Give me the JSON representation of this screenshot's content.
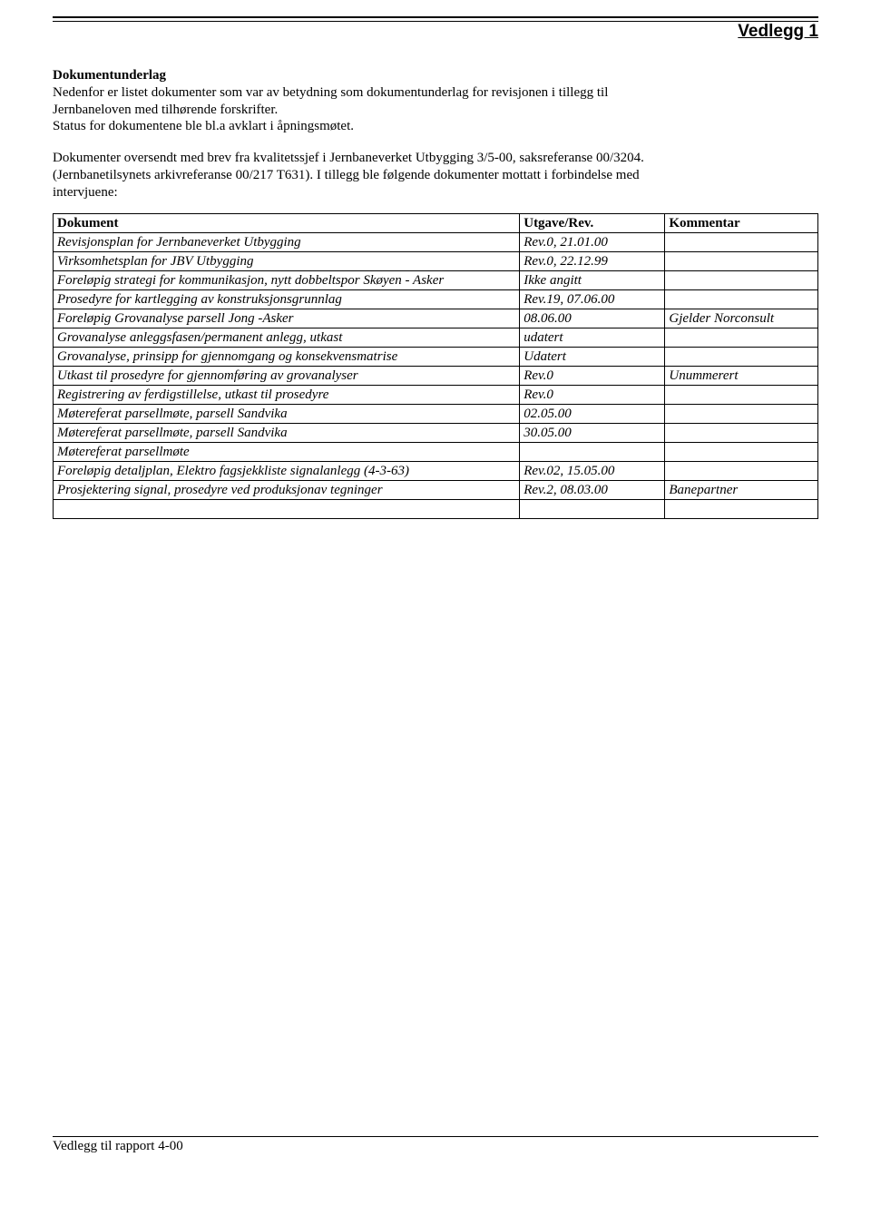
{
  "header": {
    "title": "Vedlegg 1"
  },
  "intro": {
    "heading": "Dokumentunderlag",
    "para1_line1": "Nedenfor er listet dokumenter som var av betydning som dokumentunderlag for revisjonen i tillegg til",
    "para1_line2": "Jernbaneloven med tilhørende forskrifter.",
    "para1_line3": "Status for dokumentene ble bl.a avklart i åpningsmøtet.",
    "para2_line1": "Dokumenter oversendt med brev fra kvalitetssjef i Jernbaneverket Utbygging 3/5-00, saksreferanse 00/3204.",
    "para2_line2": "(Jernbanetilsynets arkivreferanse 00/217 T631). I tillegg ble følgende dokumenter mottatt i forbindelse med",
    "para2_line3": "intervjuene:"
  },
  "table": {
    "headers": {
      "dokument": "Dokument",
      "utgave": "Utgave/Rev.",
      "kommentar": "Kommentar"
    },
    "rows": [
      {
        "d": "Revisjonsplan for Jernbaneverket Utbygging",
        "u": "Rev.0, 21.01.00",
        "k": ""
      },
      {
        "d": "Virksomhetsplan for JBV Utbygging",
        "u": "Rev.0, 22.12.99",
        "k": ""
      },
      {
        "d": "Foreløpig strategi for kommunikasjon, nytt dobbeltspor Skøyen - Asker",
        "u": "Ikke angitt",
        "k": ""
      },
      {
        "d": "Prosedyre for kartlegging av konstruksjonsgrunnlag",
        "u": "Rev.19, 07.06.00",
        "k": ""
      },
      {
        "d": "Foreløpig Grovanalyse parsell Jong -Asker",
        "u": "08.06.00",
        "k": "Gjelder Norconsult"
      },
      {
        "d": "Grovanalyse anleggsfasen/permanent anlegg, utkast",
        "u": "udatert",
        "k": ""
      },
      {
        "d": "Grovanalyse,  prinsipp for gjennomgang og konsekvensmatrise",
        "u": "Udatert",
        "k": ""
      },
      {
        "d": "Utkast til prosedyre for gjennomføring av grovanalyser",
        "u": "Rev.0",
        "k": "Unummerert"
      },
      {
        "d": "Registrering av ferdigstillelse, utkast til prosedyre",
        "u": "Rev.0",
        "k": ""
      },
      {
        "d": "Møtereferat parsellmøte, parsell Sandvika",
        "u": "02.05.00",
        "k": ""
      },
      {
        "d": "Møtereferat parsellmøte, parsell Sandvika",
        "u": "30.05.00",
        "k": ""
      },
      {
        "d": "Møtereferat parsellmøte",
        "u": "",
        "k": ""
      },
      {
        "d": "Foreløpig detaljplan, Elektro fagsjekkliste signalanlegg (4-3-63)",
        "u": "Rev.02, 15.05.00",
        "k": ""
      },
      {
        "d": "Prosjektering signal, prosedyre ved produksjonav tegninger",
        "u": "Rev.2, 08.03.00",
        "k": "Banepartner"
      },
      {
        "d": "",
        "u": "",
        "k": ""
      }
    ]
  },
  "footer": {
    "text": "Vedlegg  til rapport 4-00"
  }
}
